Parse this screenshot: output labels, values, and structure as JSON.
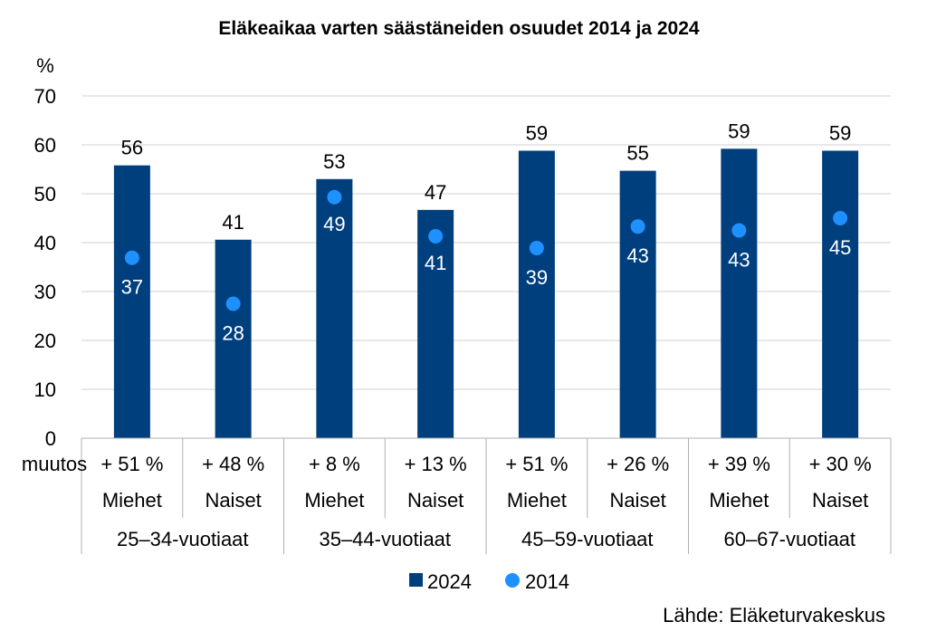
{
  "chart_data": {
    "type": "bar",
    "title": "Eläkeaikaa varten säästäneiden osuudet 2014 ja 2024",
    "ylabel": "%",
    "ylim": [
      0,
      70
    ],
    "yticks": [
      0,
      10,
      20,
      30,
      40,
      50,
      60,
      70
    ],
    "grid": true,
    "legend_position": "bottom",
    "change_row_label": "muutos",
    "categories": [
      "Miehet",
      "Naiset",
      "Miehet",
      "Naiset",
      "Miehet",
      "Naiset",
      "Miehet",
      "Naiset"
    ],
    "changes": [
      "+ 51 %",
      "+ 48 %",
      "+ 8 %",
      "+ 13 %",
      "+ 51 %",
      "+ 26 %",
      "+ 39 %",
      "+ 30 %"
    ],
    "groups": [
      "25–34-vuotiaat",
      "35–44-vuotiaat",
      "45–59-vuotiaat",
      "60–67-vuotiaat"
    ],
    "series": [
      {
        "name": "2024",
        "type": "bar",
        "color": "#003f7d",
        "values": [
          55.8,
          40.6,
          53.0,
          46.7,
          58.8,
          54.7,
          59.2,
          58.8
        ],
        "labels": [
          "56",
          "41",
          "53",
          "47",
          "59",
          "55",
          "59",
          "59"
        ]
      },
      {
        "name": "2014",
        "type": "scatter",
        "color": "#1e90ff",
        "values": [
          36.9,
          27.5,
          49.3,
          41.3,
          38.9,
          43.3,
          42.5,
          45.0
        ],
        "labels": [
          "37",
          "28",
          "49",
          "41",
          "39",
          "43",
          "43",
          "45"
        ]
      }
    ],
    "source": "Lähde: Eläketurvakeskus"
  }
}
